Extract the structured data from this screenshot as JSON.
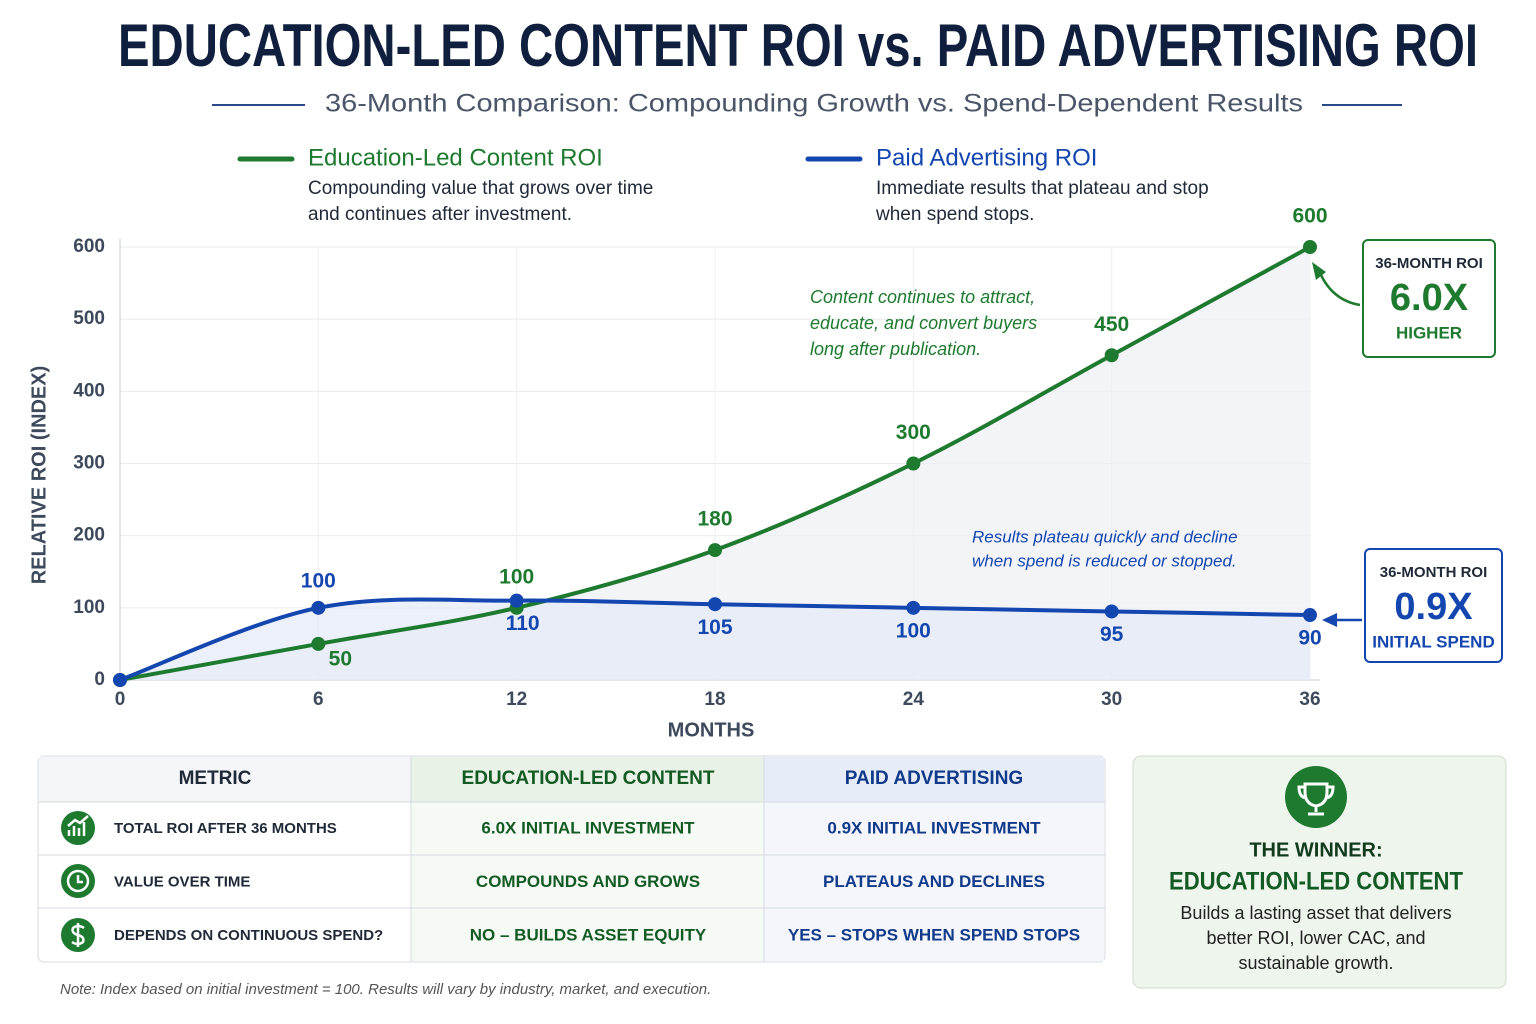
{
  "title": "EDUCATION-LED CONTENT ROI vs. PAID ADVERTISING ROI",
  "subtitle": "36-Month Comparison: Compounding Growth vs. Spend-Dependent Results",
  "chart_data": {
    "type": "line",
    "x": [
      0,
      6,
      12,
      18,
      24,
      30,
      36
    ],
    "xlim": [
      0,
      36
    ],
    "xticks": [
      0,
      6,
      12,
      18,
      24,
      30,
      36
    ],
    "ylim": [
      0,
      600
    ],
    "yticks": [
      0,
      100,
      200,
      300,
      400,
      500,
      600
    ],
    "x_label": "MONTHS",
    "y_label": "RELATIVE ROI (INDEX)",
    "grid": true,
    "series": [
      {
        "name": "Education-Led Content ROI",
        "color": "#1e7a2e",
        "description": [
          "Compounding value that grows over time",
          "and continues after investment."
        ],
        "values": [
          0,
          50,
          100,
          180,
          300,
          450,
          600
        ],
        "annotation": [
          "Content continues to attract,",
          "educate, and convert buyers",
          "long after publication."
        ],
        "callout": {
          "title": "36-MONTH ROI",
          "value": "6.0X",
          "caption": "HIGHER"
        }
      },
      {
        "name": "Paid Advertising ROI",
        "color": "#1446b0",
        "description": [
          "Immediate results that plateau and stop",
          "when spend stops."
        ],
        "values": [
          0,
          100,
          110,
          105,
          100,
          95,
          90
        ],
        "annotation": [
          "Results plateau quickly and decline",
          "when spend is reduced or stopped."
        ],
        "callout": {
          "title": "36-MONTH ROI",
          "value": "0.9X",
          "caption": "INITIAL SPEND"
        }
      }
    ]
  },
  "table": {
    "header": [
      "METRIC",
      "EDUCATION-LED CONTENT",
      "PAID ADVERTISING"
    ],
    "rows": [
      [
        "TOTAL ROI AFTER 36 MONTHS",
        "6.0X INITIAL INVESTMENT",
        "0.9X INITIAL INVESTMENT"
      ],
      [
        "VALUE OVER TIME",
        "COMPOUNDS AND GROWS",
        "PLATEAUS AND DECLINES"
      ],
      [
        "DEPENDS ON CONTINUOUS SPEND?",
        "NO – BUILDS ASSET EQUITY",
        "YES – STOPS WHEN SPEND STOPS"
      ]
    ]
  },
  "winner": {
    "title": "THE WINNER:",
    "headline": "EDUCATION-LED CONTENT",
    "text": [
      "Builds a lasting asset that delivers",
      "better ROI, lower CAC, and",
      "sustainable growth."
    ]
  },
  "note": "Note: Index based on initial investment = 100. Results will vary by industry, market, and execution."
}
